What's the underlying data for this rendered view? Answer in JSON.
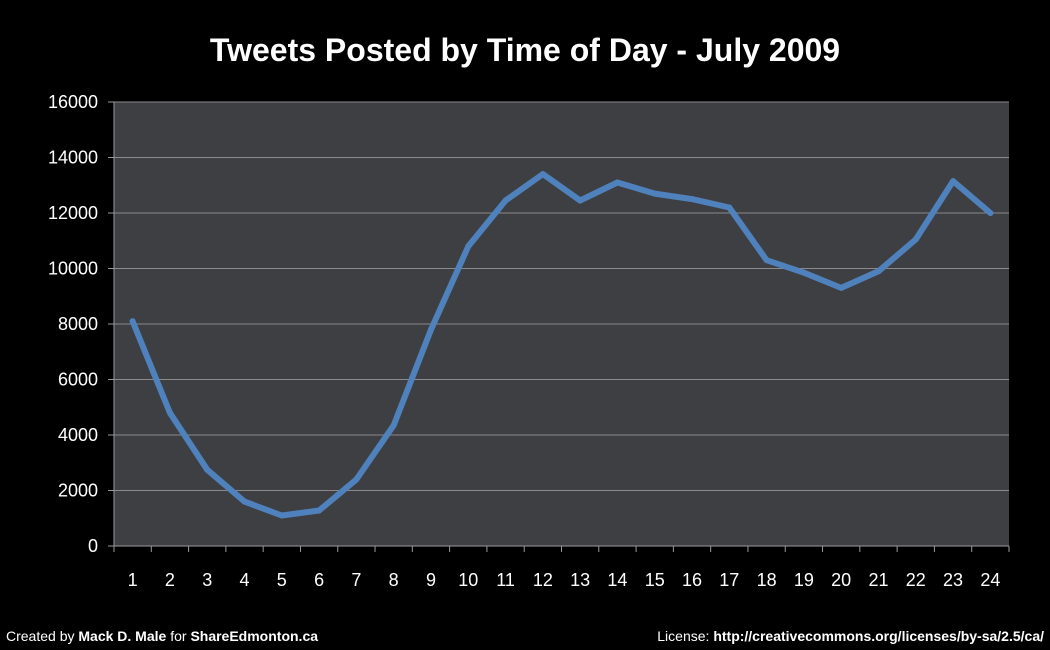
{
  "chart_data": {
    "type": "line",
    "title": "Tweets Posted by Time of Day - July 2009",
    "xlabel": "",
    "ylabel": "",
    "x": [
      1,
      2,
      3,
      4,
      5,
      6,
      7,
      8,
      9,
      10,
      11,
      12,
      13,
      14,
      15,
      16,
      17,
      18,
      19,
      20,
      21,
      22,
      23,
      24
    ],
    "series": [
      {
        "values": [
          8100,
          4800,
          2750,
          1600,
          1100,
          1280,
          2400,
          4350,
          7800,
          10800,
          12450,
          13400,
          12450,
          13100,
          12700,
          12500,
          12200,
          10300,
          9850,
          9300,
          9900,
          11050,
          13150,
          12000
        ]
      }
    ],
    "ylim": [
      0,
      16000
    ],
    "yticks": [
      0,
      2000,
      4000,
      6000,
      8000,
      10000,
      12000,
      14000,
      16000
    ],
    "grid": true,
    "legend": "none",
    "colors": {
      "background": "#000000",
      "plot_area": "#3e3f42",
      "line": "#4f81bd",
      "grid": "#8a8a8a",
      "text": "#ffffff"
    }
  },
  "footer": {
    "left_prefix": "Created by ",
    "left_author": "Mack D. Male",
    "left_mid": " for ",
    "left_site": "ShareEdmonton.ca",
    "right_prefix": "License: ",
    "right_url": "http://creativecommons.org/licenses/by-sa/2.5/ca/"
  }
}
